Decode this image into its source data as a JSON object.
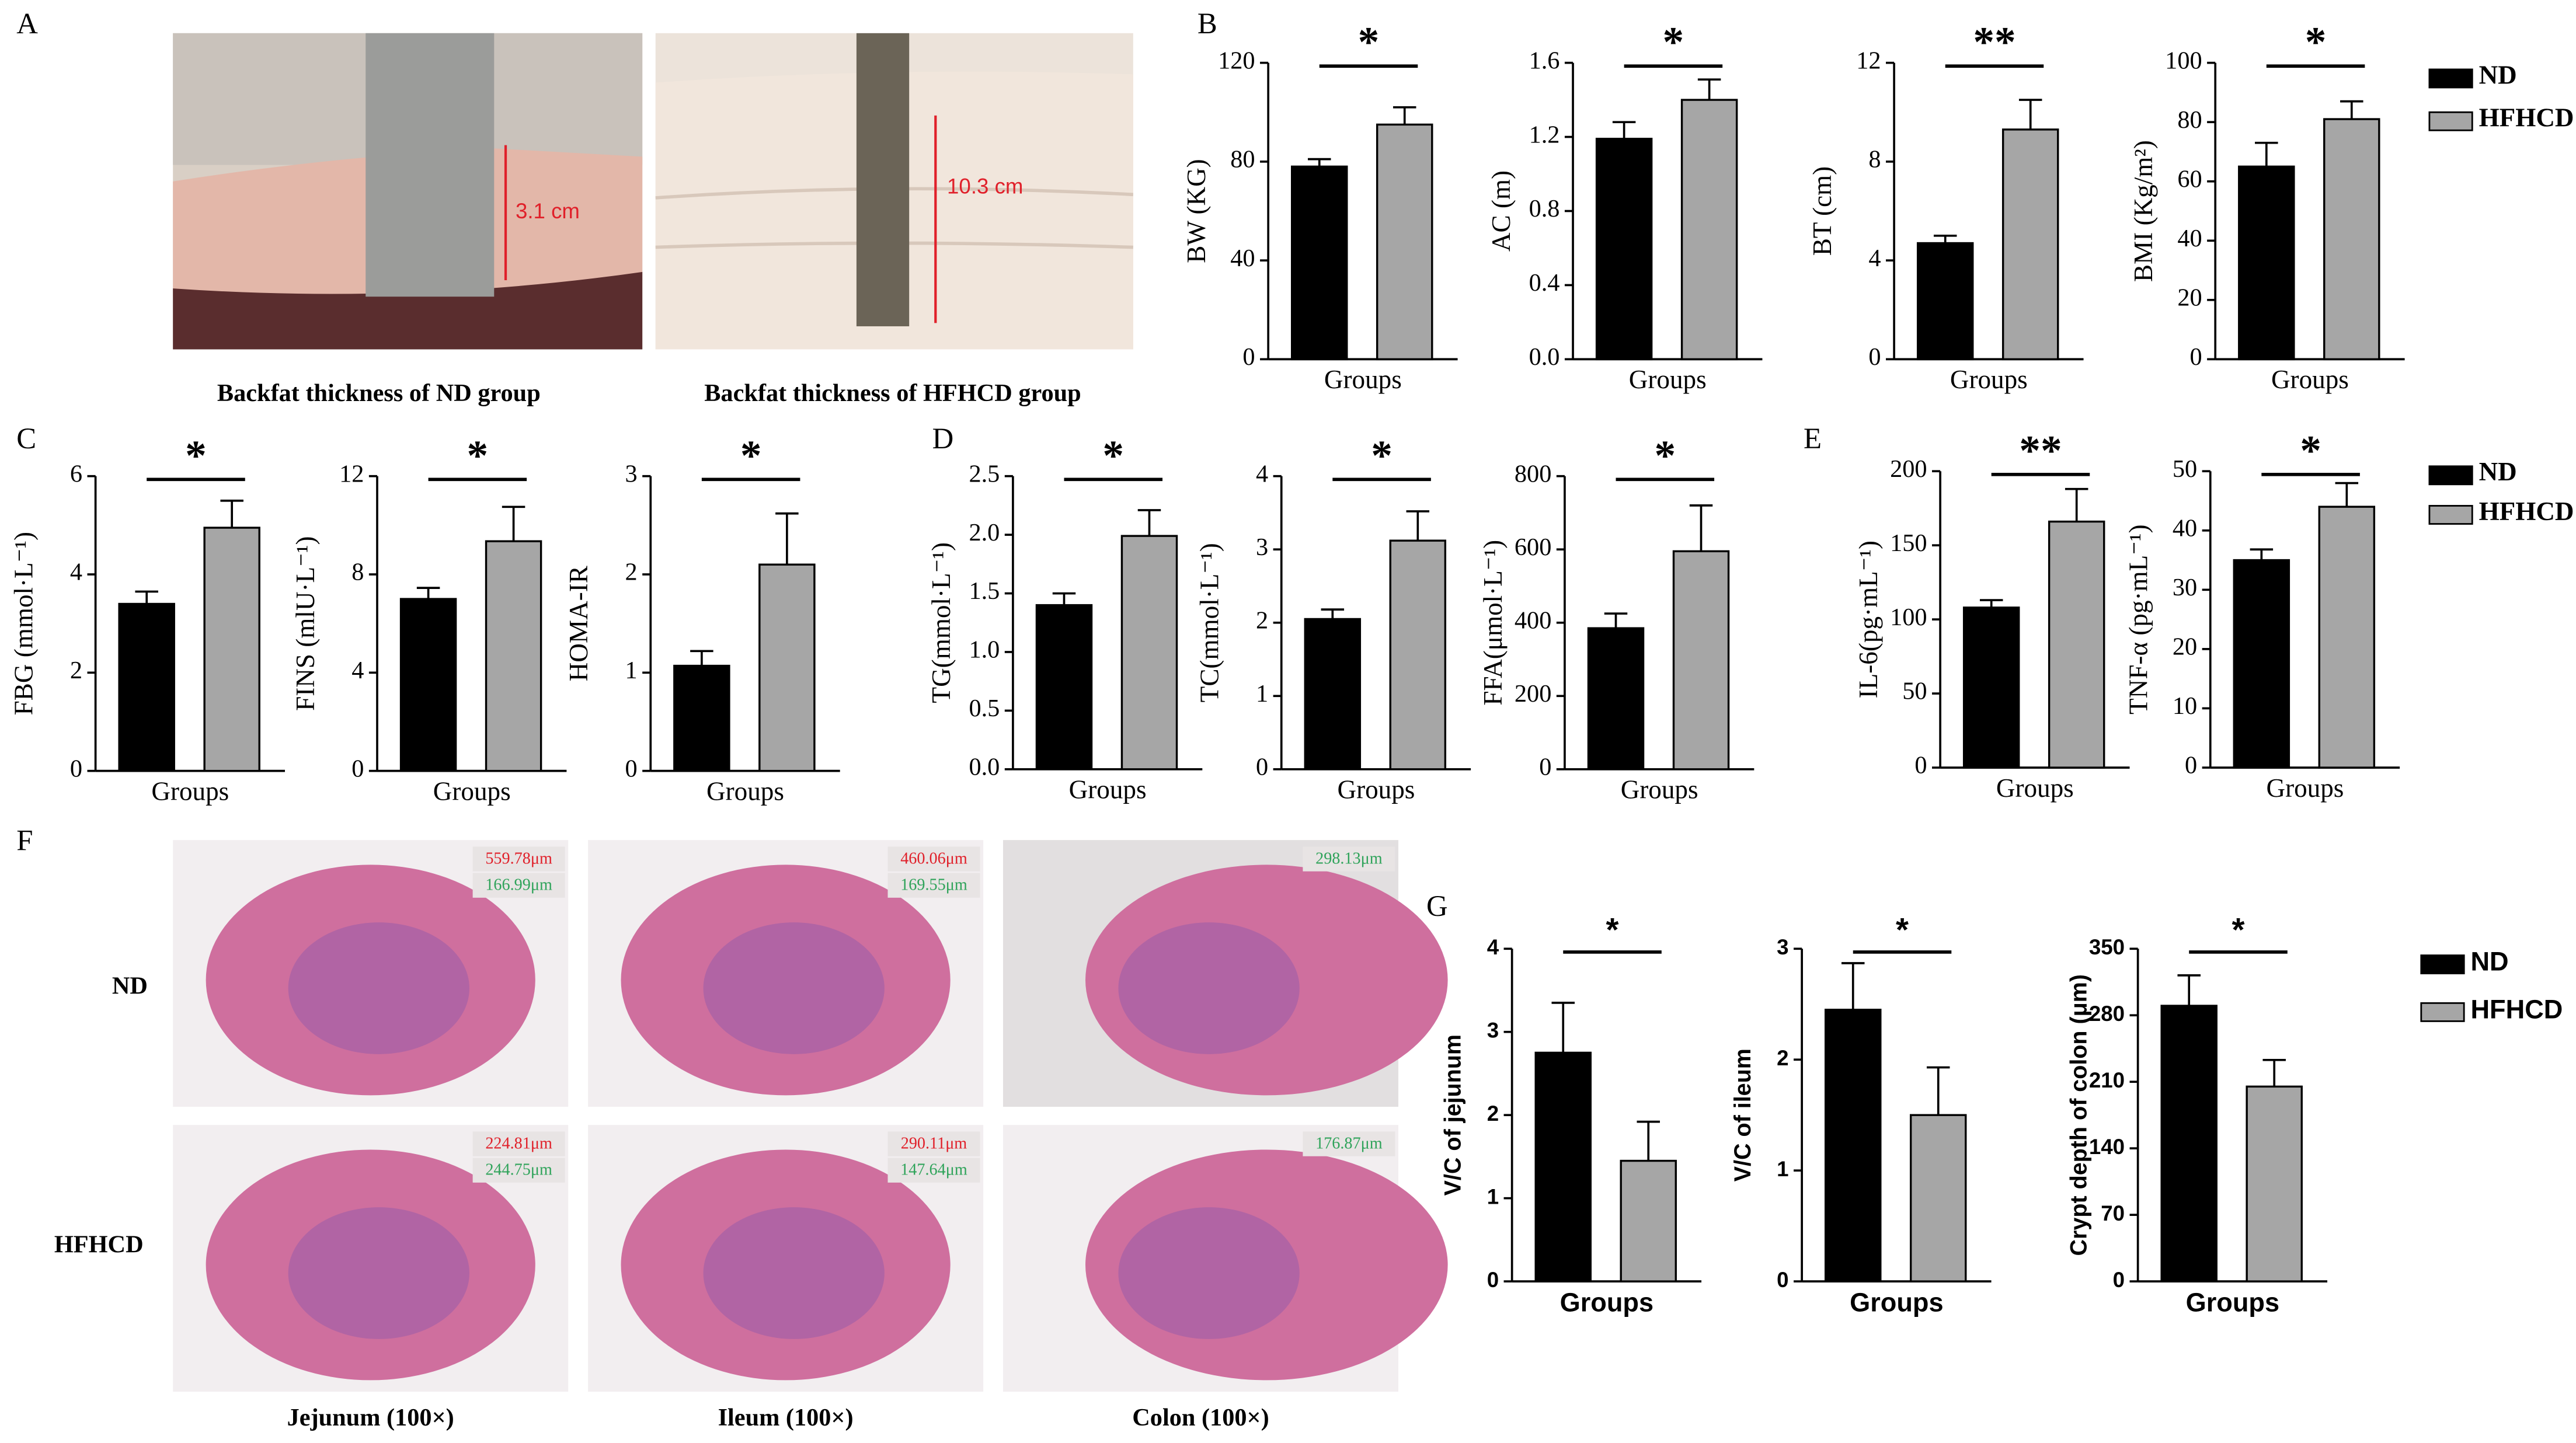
{
  "panel_labels": [
    "A",
    "B",
    "C",
    "D",
    "E",
    "F",
    "G"
  ],
  "photos": {
    "captions": [
      "Backfat thickness of ND group",
      "Backfat thickness of  HFHCD group"
    ],
    "measures": [
      "3.1 cm",
      "10.3 cm"
    ]
  },
  "histology": {
    "rows": [
      "ND",
      "HFHCD"
    ],
    "columns": [
      "Jejunum (100×)",
      "Ileum (100×)",
      "Colon (100×)"
    ],
    "measures": [
      [
        [
          "559.78μm",
          "166.99μm"
        ],
        [
          "460.06μm",
          "169.55μm"
        ],
        [
          "298.13μm"
        ]
      ],
      [
        [
          "224.81μm",
          "244.75μm"
        ],
        [
          "290.11μm",
          "147.64μm"
        ],
        [
          "176.87μm"
        ]
      ]
    ]
  },
  "series": [
    {
      "name": "ND",
      "color": "#000000"
    },
    {
      "name": "HFHCD",
      "color": "#a6a6a6"
    }
  ],
  "chart_data": [
    {
      "type": "bar",
      "ylabel": "BW (KG)",
      "xlabel": "Groups",
      "values": [
        78,
        95
      ],
      "errors": [
        3,
        7
      ],
      "significance": "*",
      "ylim": [
        0,
        120
      ],
      "yticks": [
        0,
        40,
        80,
        120
      ]
    },
    {
      "type": "bar",
      "ylabel": "AC (m)",
      "xlabel": "Groups",
      "values": [
        1.19,
        1.4
      ],
      "errors": [
        0.09,
        0.11
      ],
      "significance": "*",
      "ylim": [
        0,
        1.6
      ],
      "yticks": [
        {
          "value": 0,
          "label": "0.0"
        },
        0.4,
        0.8,
        1.2,
        1.6
      ]
    },
    {
      "type": "bar",
      "ylabel": "BT (cm)",
      "xlabel": "Groups",
      "values": [
        4.7,
        9.3
      ],
      "errors": [
        0.3,
        1.2
      ],
      "significance": "**",
      "ylim": [
        0,
        12
      ],
      "yticks": [
        0,
        4,
        8,
        12
      ]
    },
    {
      "type": "bar",
      "ylabel": "BMI (Kg/m²)",
      "xlabel": "Groups",
      "values": [
        65,
        81
      ],
      "errors": [
        8,
        6
      ],
      "significance": "*",
      "ylim": [
        0,
        100
      ],
      "yticks": [
        0,
        20,
        40,
        60,
        80,
        100
      ]
    },
    {
      "type": "bar",
      "ylabel": "FBG (mmol·L⁻¹)",
      "xlabel": "Groups",
      "values": [
        3.4,
        4.95
      ],
      "errors": [
        0.25,
        0.55
      ],
      "significance": "*",
      "ylim": [
        0,
        6
      ],
      "yticks": [
        0,
        2,
        4,
        6
      ]
    },
    {
      "type": "bar",
      "ylabel": "FINS (mlU·L⁻¹)",
      "xlabel": "Groups",
      "values": [
        7.0,
        9.35
      ],
      "errors": [
        0.45,
        1.4
      ],
      "significance": "*",
      "ylim": [
        0,
        12
      ],
      "yticks": [
        0,
        4,
        8,
        12
      ]
    },
    {
      "type": "bar",
      "ylabel": "HOMA-IR",
      "xlabel": "Groups",
      "values": [
        1.07,
        2.1
      ],
      "errors": [
        0.15,
        0.52
      ],
      "significance": "*",
      "ylim": [
        0,
        3
      ],
      "yticks": [
        0,
        1,
        2,
        3
      ]
    },
    {
      "type": "bar",
      "ylabel": "TG(mmol·L⁻¹)",
      "xlabel": "Groups",
      "values": [
        1.4,
        1.99
      ],
      "errors": [
        0.1,
        0.22
      ],
      "significance": "*",
      "ylim": [
        0,
        2.5
      ],
      "yticks": [
        {
          "value": 0,
          "label": "0.0"
        },
        0.5,
        {
          "value": 1,
          "label": "1.0"
        },
        1.5,
        {
          "value": 2,
          "label": "2.0"
        },
        2.5
      ]
    },
    {
      "type": "bar",
      "ylabel": "TC(mmol·L⁻¹)",
      "xlabel": "Groups",
      "values": [
        2.05,
        3.12
      ],
      "errors": [
        0.13,
        0.4
      ],
      "significance": "*",
      "ylim": [
        0,
        4
      ],
      "yticks": [
        0,
        1,
        2,
        3,
        4
      ]
    },
    {
      "type": "bar",
      "ylabel": "FFA(μmol·L⁻¹)",
      "xlabel": "Groups",
      "values": [
        385,
        595
      ],
      "errors": [
        40,
        125
      ],
      "significance": "*",
      "ylim": [
        0,
        800
      ],
      "yticks": [
        0,
        200,
        400,
        600,
        800
      ]
    },
    {
      "type": "bar",
      "ylabel": "IL-6(pg·mL⁻¹)",
      "xlabel": "Groups",
      "values": [
        108,
        166
      ],
      "errors": [
        5,
        22
      ],
      "significance": "**",
      "ylim": [
        0,
        200
      ],
      "yticks": [
        0,
        50,
        100,
        150,
        200
      ]
    },
    {
      "type": "bar",
      "ylabel": "TNF-α (pg·mL⁻¹)",
      "xlabel": "Groups",
      "values": [
        35,
        44
      ],
      "errors": [
        1.8,
        4
      ],
      "significance": "*",
      "ylim": [
        0,
        50
      ],
      "yticks": [
        0,
        10,
        20,
        30,
        40,
        50
      ]
    },
    {
      "type": "bar",
      "ylabel": "V/C of jejunum",
      "xlabel": "Groups",
      "values": [
        2.75,
        1.45
      ],
      "errors": [
        0.6,
        0.47
      ],
      "significance": "*",
      "ylim": [
        0,
        4
      ],
      "yticks": [
        0,
        1,
        2,
        3,
        4
      ]
    },
    {
      "type": "bar",
      "ylabel": "V/C of ileum",
      "xlabel": "Groups",
      "values": [
        2.45,
        1.5
      ],
      "errors": [
        0.42,
        0.43
      ],
      "significance": "*",
      "ylim": [
        0,
        3
      ],
      "yticks": [
        0,
        1,
        2,
        3
      ]
    },
    {
      "type": "bar",
      "ylabel": "Crypt depth of colon (μm)",
      "xlabel": "Groups",
      "values": [
        290,
        205
      ],
      "errors": [
        32,
        28
      ],
      "significance": "*",
      "ylim": [
        0,
        350
      ],
      "yticks": [
        0,
        70,
        140,
        210,
        280,
        350
      ]
    }
  ]
}
